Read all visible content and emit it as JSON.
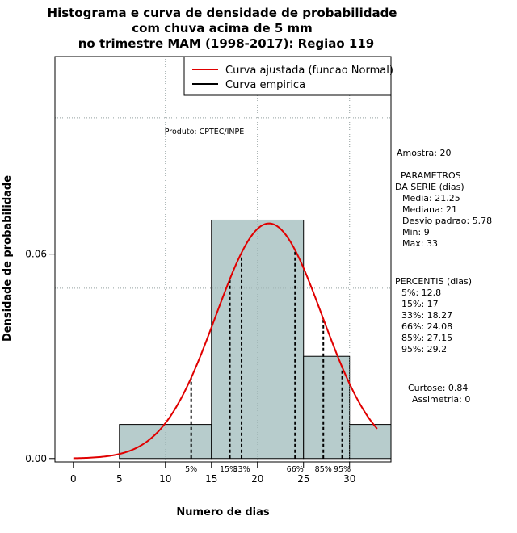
{
  "chart_data": {
    "type": "bar",
    "title_lines": [
      "Histograma e curva de densidade de probabilidade",
      "com chuva acima de 5 mm",
      "no trimestre MAM (1998-2017): Regiao 119"
    ],
    "xlabel": "Numero de dias",
    "ylabel": "Densidade de probabilidade",
    "xlim": [
      -2,
      34.5
    ],
    "ylim": [
      -0.001,
      0.118
    ],
    "x_ticks": [
      0,
      5,
      10,
      15,
      20,
      25,
      30
    ],
    "y_ticks": [
      0.0,
      0.06
    ],
    "y_tick_labels": [
      "0.00",
      "0.06"
    ],
    "grid": true,
    "grid_x": [
      10,
      20,
      30
    ],
    "grid_y": [
      0.05,
      0.1
    ],
    "histogram": {
      "bins": [
        [
          5,
          15
        ],
        [
          15,
          25
        ],
        [
          25,
          30
        ],
        [
          30,
          35
        ]
      ],
      "values": [
        0.01,
        0.07,
        0.03,
        0.01
      ],
      "fill": "#b7cccc"
    },
    "normal_curve": {
      "name": "Curva ajustada (funcao Normal)",
      "color": "#e00000",
      "mean": 21.25,
      "sd": 5.78,
      "x_range": [
        0,
        33
      ]
    },
    "percentile_lines": [
      {
        "label": "5%",
        "x": 12.8
      },
      {
        "label": "15%",
        "x": 17
      },
      {
        "label": "33%",
        "x": 18.27
      },
      {
        "label": "66%",
        "x": 24.08
      },
      {
        "label": "85%",
        "x": 27.15
      },
      {
        "label": "95%",
        "x": 29.2
      }
    ],
    "legend": {
      "placement": "top-right",
      "entries": [
        {
          "label": "Curva ajustada (funcao Normal)",
          "color": "#e00000"
        },
        {
          "label": "Curva empirica",
          "color": "#000000"
        }
      ]
    },
    "annotation_product": "Produto: CPTEC/INPE",
    "side_panel": {
      "amostra": "Amostra: 20",
      "parametros_title_1": "PARAMETROS",
      "parametros_title_2": "DA SERIE (dias)",
      "parametros": [
        "Media: 21.25",
        "Mediana: 21",
        "Desvio padrao: 5.78",
        "Min: 9",
        "Max: 33"
      ],
      "percentis_title": "PERCENTIS (dias)",
      "percentis": [
        "5%: 12.8",
        "15%: 17",
        "33%: 18.27",
        "66%: 24.08",
        "85%: 27.15",
        "95%: 29.2"
      ],
      "curtose": "Curtose: 0.84",
      "assimetria": "Assimetria: 0"
    }
  }
}
